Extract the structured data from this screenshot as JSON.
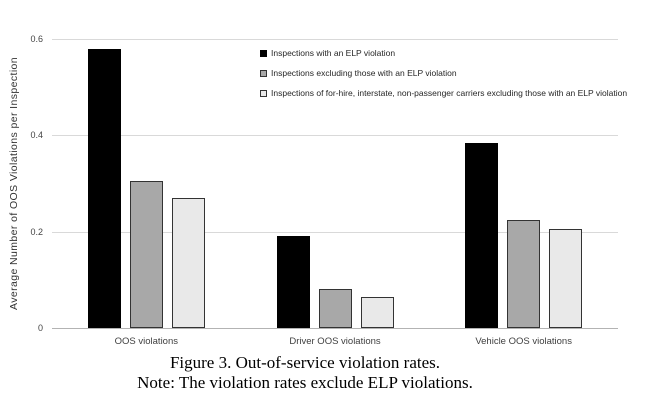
{
  "chart_data": {
    "type": "bar",
    "categories": [
      "OOS violations",
      "Driver OOS violations",
      "Vehicle OOS violations"
    ],
    "series": [
      {
        "name": "Inspections with an ELP violation",
        "fill": "#000000",
        "border": "#000000",
        "values": [
          0.58,
          0.19,
          0.385
        ]
      },
      {
        "name": "Inspections excluding those with an ELP violation",
        "fill": "#a8a8a8",
        "border": "#333333",
        "values": [
          0.305,
          0.08,
          0.225
        ]
      },
      {
        "name": "Inspections of for-hire, interstate, non-passenger carriers excluding those with an ELP violation",
        "fill": "#e9e9e9",
        "border": "#333333",
        "values": [
          0.27,
          0.065,
          0.205
        ]
      }
    ],
    "title": "",
    "xlabel": "",
    "ylabel": "Average Number of OOS Violations per Inspection",
    "ylim": [
      0,
      0.6
    ],
    "yticks": [
      0,
      0.2,
      0.4,
      0.6
    ],
    "ytick_labels": [
      "0",
      "0.2",
      "0.4",
      "0.6"
    ],
    "grid": true,
    "legend_position": "inside-top-right"
  },
  "caption": {
    "line1": "Figure 3. Out-of-service violation rates.",
    "line2": "Note: The violation rates exclude ELP violations."
  },
  "colors": {
    "gridline": "#d9d9d9",
    "axis_line": "#b3b3b3",
    "tick_text": "#444444",
    "background": "#ffffff"
  }
}
